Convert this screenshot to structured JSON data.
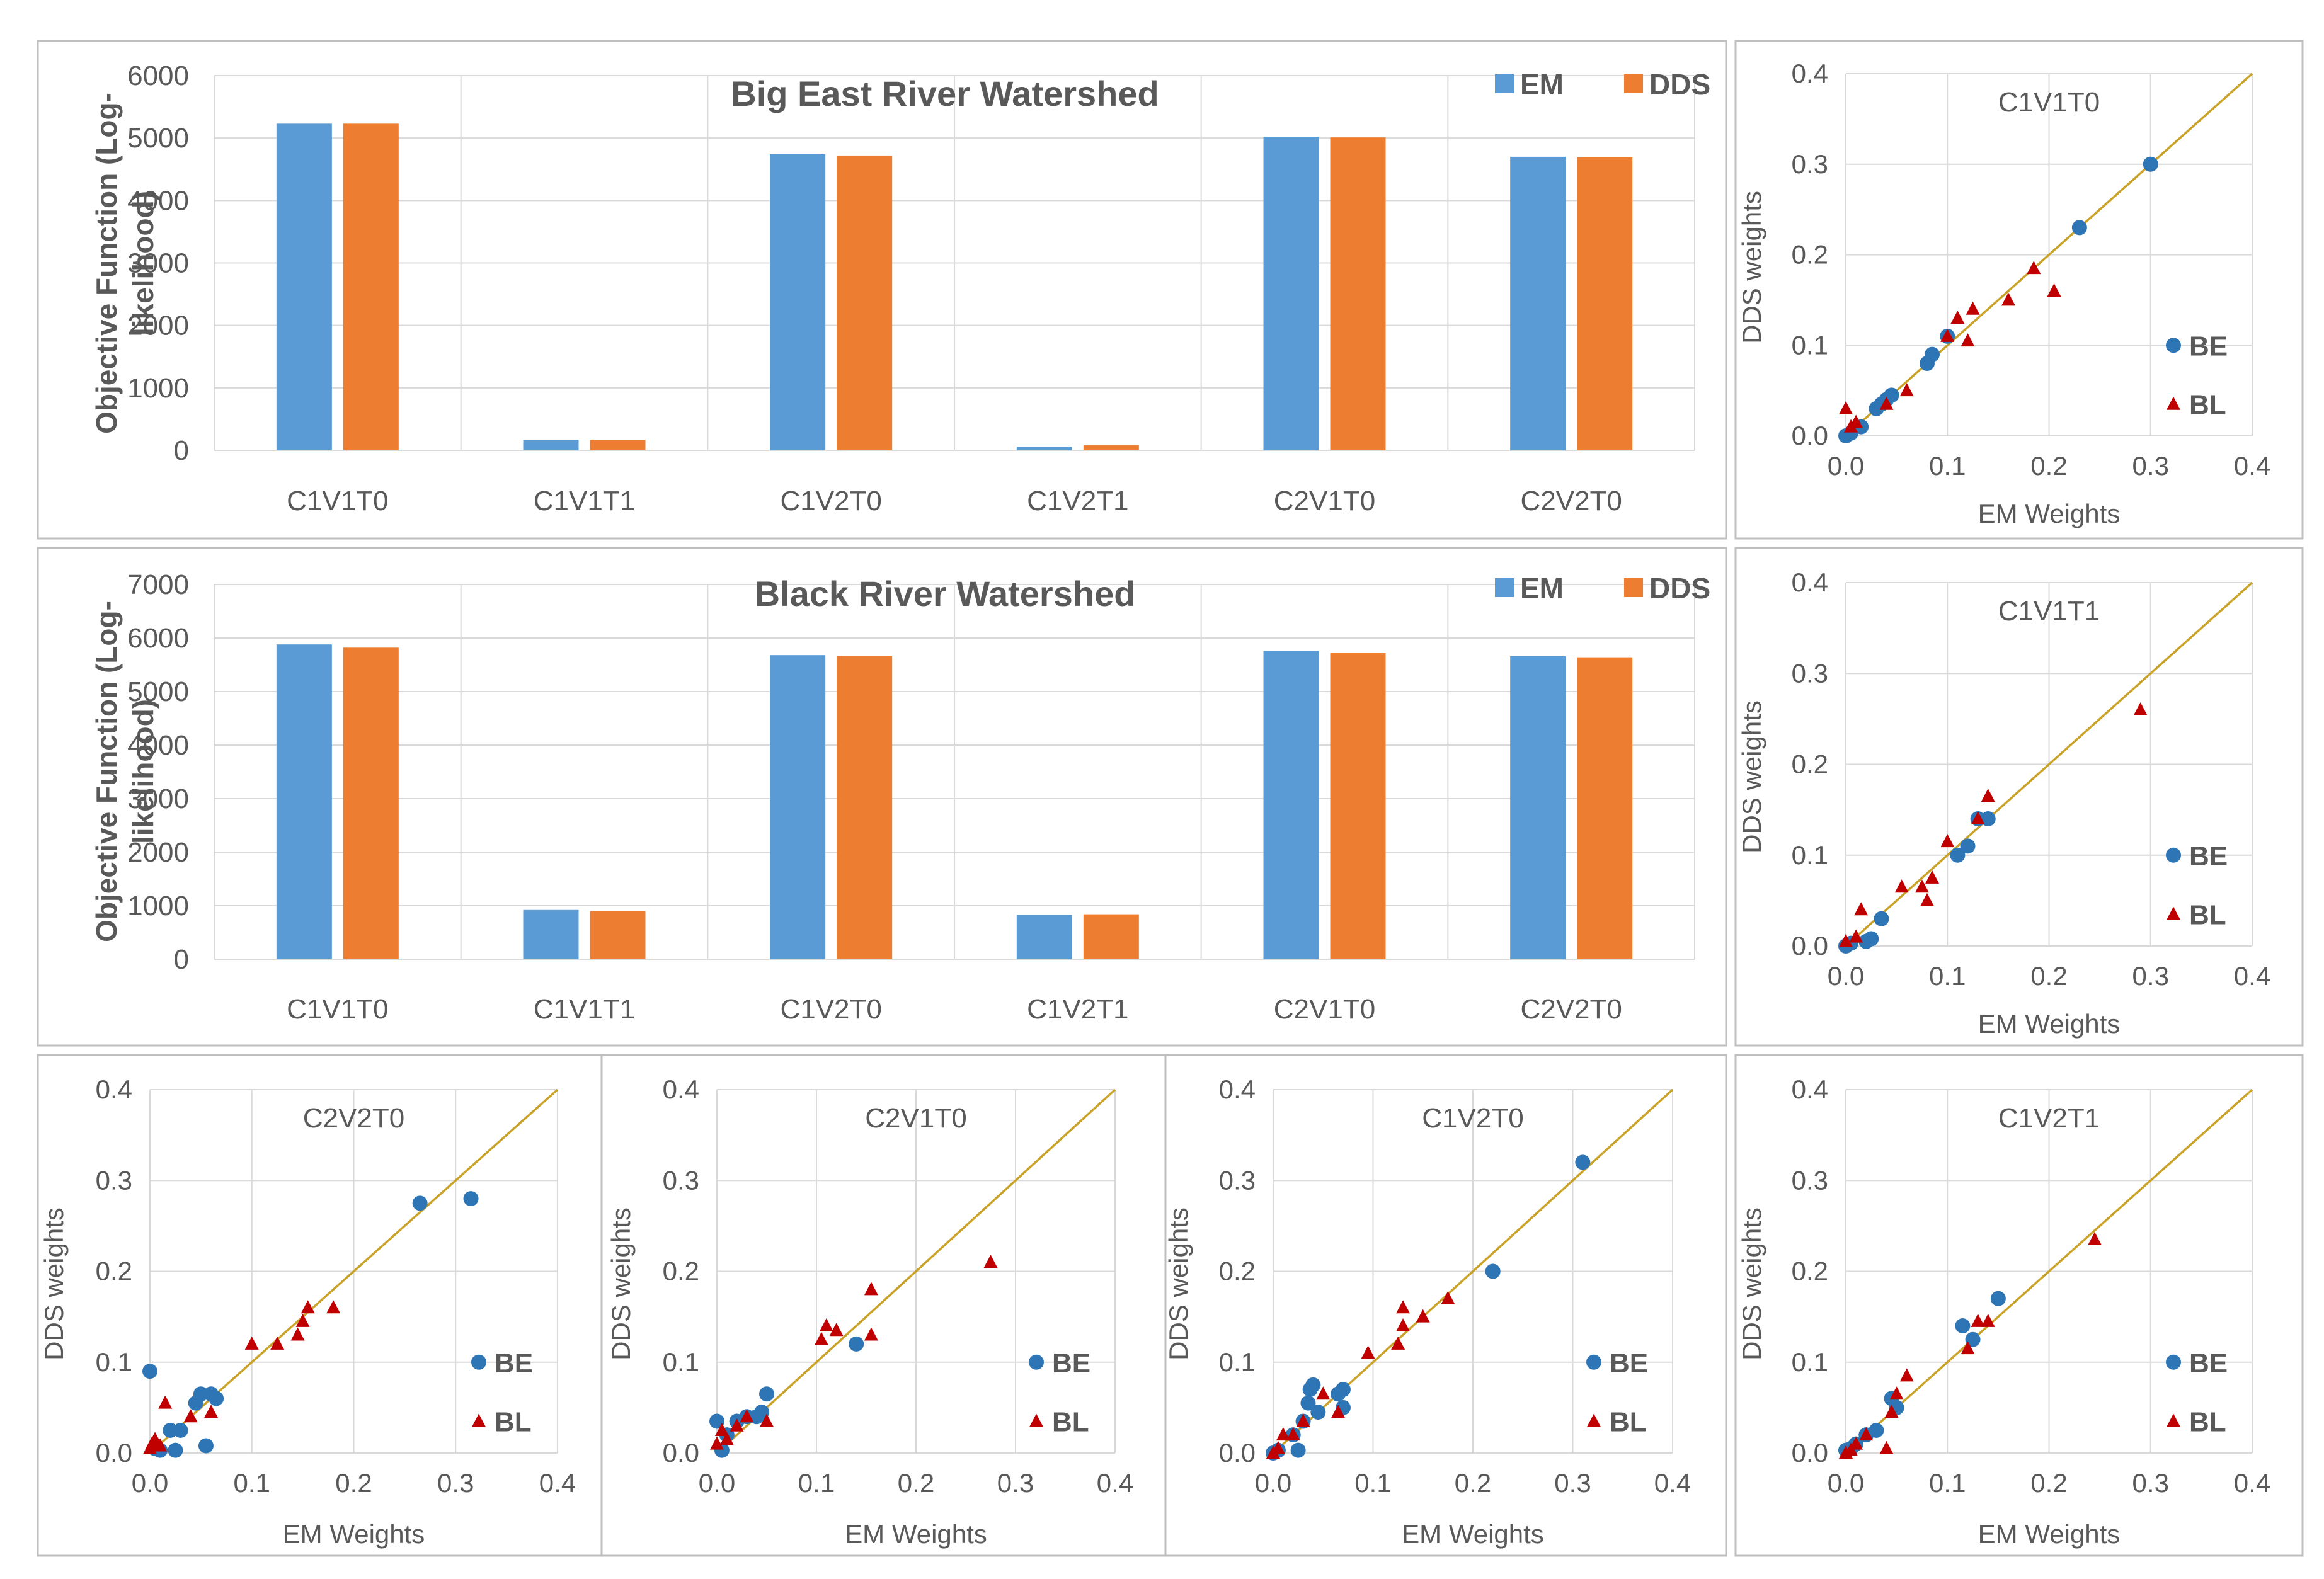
{
  "colors": {
    "em": "#5B9BD5",
    "dds": "#ED7D31",
    "be": "#2E75B6",
    "bl": "#C00000",
    "line": "#C9A227",
    "grid": "#D9D9D9",
    "frame": "#BFBFBF",
    "text": "#595959"
  },
  "chart_data": [
    {
      "id": "bar-big-east",
      "type": "bar",
      "title": "Big East River Watershed",
      "ylabel_lines": [
        "Objective Function (Log-",
        "likelihood)"
      ],
      "xlabel": "",
      "categories": [
        "C1V1T0",
        "C1V1T1",
        "C1V2T0",
        "C1V2T1",
        "C2V1T0",
        "C2V2T0"
      ],
      "series": [
        {
          "name": "EM",
          "values": [
            5230,
            170,
            4740,
            60,
            5020,
            4700
          ]
        },
        {
          "name": "DDS",
          "values": [
            5230,
            170,
            4720,
            80,
            5010,
            4690
          ]
        }
      ],
      "ylim": [
        0,
        6000
      ],
      "yticks": [
        "0",
        "1000",
        "2000",
        "3000",
        "4000",
        "5000",
        "6000"
      ],
      "legend": "top-right"
    },
    {
      "id": "bar-black",
      "type": "bar",
      "title": "Black River Watershed",
      "ylabel_lines": [
        "Objective Function (Log-",
        "likelihood)"
      ],
      "xlabel": "",
      "categories": [
        "C1V1T0",
        "C1V1T1",
        "C1V2T0",
        "C1V2T1",
        "C2V1T0",
        "C2V2T0"
      ],
      "series": [
        {
          "name": "EM",
          "values": [
            5880,
            920,
            5680,
            830,
            5760,
            5660
          ]
        },
        {
          "name": "DDS",
          "values": [
            5820,
            900,
            5670,
            840,
            5720,
            5640
          ]
        }
      ],
      "ylim": [
        0,
        7000
      ],
      "yticks": [
        "0",
        "1000",
        "2000",
        "3000",
        "4000",
        "5000",
        "6000",
        "7000"
      ],
      "legend": "top-right"
    },
    {
      "id": "sc-c1v1t0",
      "type": "scatter",
      "title": "C1V1T0",
      "xlabel": "EM Weights",
      "ylabel": "DDS weights",
      "xlim": [
        0,
        0.4
      ],
      "ylim": [
        0,
        0.4
      ],
      "xticks": [
        "0.0",
        "0.1",
        "0.2",
        "0.3",
        "0.4"
      ],
      "yticks": [
        "0.0",
        "0.1",
        "0.2",
        "0.3",
        "0.4"
      ],
      "legend": "right",
      "series": [
        {
          "name": "BE",
          "points": [
            [
              0,
              0
            ],
            [
              0.005,
              0.003
            ],
            [
              0.015,
              0.01
            ],
            [
              0.03,
              0.03
            ],
            [
              0.035,
              0.035
            ],
            [
              0.04,
              0.04
            ],
            [
              0.045,
              0.045
            ],
            [
              0.08,
              0.08
            ],
            [
              0.085,
              0.09
            ],
            [
              0.1,
              0.11
            ],
            [
              0.23,
              0.23
            ],
            [
              0.3,
              0.3
            ]
          ]
        },
        {
          "name": "BL",
          "points": [
            [
              0,
              0.03
            ],
            [
              0.005,
              0.01
            ],
            [
              0.01,
              0.015
            ],
            [
              0.04,
              0.035
            ],
            [
              0.06,
              0.05
            ],
            [
              0.1,
              0.11
            ],
            [
              0.11,
              0.13
            ],
            [
              0.12,
              0.105
            ],
            [
              0.125,
              0.14
            ],
            [
              0.16,
              0.15
            ],
            [
              0.185,
              0.185
            ],
            [
              0.205,
              0.16
            ]
          ]
        }
      ]
    },
    {
      "id": "sc-c1v1t1",
      "type": "scatter",
      "title": "C1V1T1",
      "xlabel": "EM Weights",
      "ylabel": "DDS weights",
      "xlim": [
        0,
        0.4
      ],
      "ylim": [
        0,
        0.4
      ],
      "xticks": [
        "0.0",
        "0.1",
        "0.2",
        "0.3",
        "0.4"
      ],
      "yticks": [
        "0.0",
        "0.1",
        "0.2",
        "0.3",
        "0.4"
      ],
      "legend": "right",
      "series": [
        {
          "name": "BE",
          "points": [
            [
              0,
              0
            ],
            [
              0.005,
              0.003
            ],
            [
              0.02,
              0.005
            ],
            [
              0.025,
              0.008
            ],
            [
              0.035,
              0.03
            ],
            [
              0.11,
              0.1
            ],
            [
              0.12,
              0.11
            ],
            [
              0.13,
              0.14
            ],
            [
              0.14,
              0.14
            ]
          ]
        },
        {
          "name": "BL",
          "points": [
            [
              0,
              0.005
            ],
            [
              0.01,
              0.01
            ],
            [
              0.015,
              0.04
            ],
            [
              0.055,
              0.065
            ],
            [
              0.075,
              0.065
            ],
            [
              0.08,
              0.05
            ],
            [
              0.085,
              0.075
            ],
            [
              0.1,
              0.115
            ],
            [
              0.13,
              0.14
            ],
            [
              0.14,
              0.165
            ],
            [
              0.29,
              0.26
            ]
          ]
        }
      ]
    },
    {
      "id": "sc-c2v2t0",
      "type": "scatter",
      "title": "C2V2T0",
      "xlabel": "EM Weights",
      "ylabel": "DDS weights",
      "xlim": [
        0,
        0.4
      ],
      "ylim": [
        0,
        0.4
      ],
      "xticks": [
        "0.0",
        "0.1",
        "0.2",
        "0.3",
        "0.4"
      ],
      "yticks": [
        "0.0",
        "0.1",
        "0.2",
        "0.3",
        "0.4"
      ],
      "legend": "right",
      "series": [
        {
          "name": "BE",
          "points": [
            [
              0,
              0.09
            ],
            [
              0.005,
              0.005
            ],
            [
              0.01,
              0.003
            ],
            [
              0.02,
              0.025
            ],
            [
              0.025,
              0.003
            ],
            [
              0.03,
              0.025
            ],
            [
              0.045,
              0.055
            ],
            [
              0.05,
              0.065
            ],
            [
              0.055,
              0.008
            ],
            [
              0.06,
              0.065
            ],
            [
              0.065,
              0.06
            ],
            [
              0.265,
              0.275
            ],
            [
              0.315,
              0.28
            ]
          ]
        },
        {
          "name": "BL",
          "points": [
            [
              0,
              0.005
            ],
            [
              0.002,
              0.01
            ],
            [
              0.005,
              0.015
            ],
            [
              0.01,
              0.008
            ],
            [
              0.015,
              0.055
            ],
            [
              0.04,
              0.04
            ],
            [
              0.06,
              0.045
            ],
            [
              0.1,
              0.12
            ],
            [
              0.125,
              0.12
            ],
            [
              0.145,
              0.13
            ],
            [
              0.15,
              0.145
            ],
            [
              0.155,
              0.16
            ],
            [
              0.18,
              0.16
            ]
          ]
        }
      ]
    },
    {
      "id": "sc-c2v1t0",
      "type": "scatter",
      "title": "C2V1T0",
      "xlabel": "EM Weights",
      "ylabel": "DDS weights",
      "xlim": [
        0,
        0.4
      ],
      "ylim": [
        0,
        0.4
      ],
      "xticks": [
        "0.0",
        "0.1",
        "0.2",
        "0.3",
        "0.4"
      ],
      "yticks": [
        "0.0",
        "0.1",
        "0.2",
        "0.3",
        "0.4"
      ],
      "legend": "right",
      "series": [
        {
          "name": "BE",
          "points": [
            [
              0,
              0.035
            ],
            [
              0.005,
              0.003
            ],
            [
              0.01,
              0.02
            ],
            [
              0.02,
              0.035
            ],
            [
              0.03,
              0.04
            ],
            [
              0.04,
              0.04
            ],
            [
              0.045,
              0.045
            ],
            [
              0.05,
              0.065
            ],
            [
              0.14,
              0.12
            ]
          ]
        },
        {
          "name": "BL",
          "points": [
            [
              0,
              0.01
            ],
            [
              0.005,
              0.025
            ],
            [
              0.01,
              0.015
            ],
            [
              0.02,
              0.03
            ],
            [
              0.03,
              0.04
            ],
            [
              0.05,
              0.035
            ],
            [
              0.105,
              0.125
            ],
            [
              0.11,
              0.14
            ],
            [
              0.12,
              0.135
            ],
            [
              0.155,
              0.18
            ],
            [
              0.155,
              0.13
            ],
            [
              0.275,
              0.21
            ]
          ]
        }
      ]
    },
    {
      "id": "sc-c1v2t0",
      "type": "scatter",
      "title": "C1V2T0",
      "xlabel": "EM Weights",
      "ylabel": "DDS weights",
      "xlim": [
        0,
        0.4
      ],
      "ylim": [
        0,
        0.4
      ],
      "xticks": [
        "0.0",
        "0.1",
        "0.2",
        "0.3",
        "0.4"
      ],
      "yticks": [
        "0.0",
        "0.1",
        "0.2",
        "0.3",
        "0.4"
      ],
      "legend": "right",
      "series": [
        {
          "name": "BE",
          "points": [
            [
              0,
              0
            ],
            [
              0.005,
              0.003
            ],
            [
              0.02,
              0.02
            ],
            [
              0.025,
              0.003
            ],
            [
              0.03,
              0.035
            ],
            [
              0.035,
              0.055
            ],
            [
              0.037,
              0.07
            ],
            [
              0.04,
              0.075
            ],
            [
              0.045,
              0.045
            ],
            [
              0.065,
              0.065
            ],
            [
              0.07,
              0.05
            ],
            [
              0.07,
              0.07
            ],
            [
              0.22,
              0.2
            ],
            [
              0.31,
              0.32
            ]
          ]
        },
        {
          "name": "BL",
          "points": [
            [
              0,
              0
            ],
            [
              0.005,
              0.005
            ],
            [
              0.01,
              0.02
            ],
            [
              0.02,
              0.02
            ],
            [
              0.03,
              0.035
            ],
            [
              0.05,
              0.065
            ],
            [
              0.065,
              0.045
            ],
            [
              0.095,
              0.11
            ],
            [
              0.125,
              0.12
            ],
            [
              0.13,
              0.14
            ],
            [
              0.13,
              0.16
            ],
            [
              0.15,
              0.15
            ],
            [
              0.175,
              0.17
            ]
          ]
        }
      ]
    },
    {
      "id": "sc-c1v2t1",
      "type": "scatter",
      "title": "C1V2T1",
      "xlabel": "EM Weights",
      "ylabel": "DDS weights",
      "xlim": [
        0,
        0.4
      ],
      "ylim": [
        0,
        0.4
      ],
      "xticks": [
        "0.0",
        "0.1",
        "0.2",
        "0.3",
        "0.4"
      ],
      "yticks": [
        "0.0",
        "0.1",
        "0.2",
        "0.3",
        "0.4"
      ],
      "legend": "right",
      "series": [
        {
          "name": "BE",
          "points": [
            [
              0,
              0.003
            ],
            [
              0.005,
              0.005
            ],
            [
              0.01,
              0.01
            ],
            [
              0.02,
              0.02
            ],
            [
              0.03,
              0.025
            ],
            [
              0.045,
              0.06
            ],
            [
              0.05,
              0.05
            ],
            [
              0.115,
              0.14
            ],
            [
              0.125,
              0.125
            ],
            [
              0.15,
              0.17
            ]
          ]
        },
        {
          "name": "BL",
          "points": [
            [
              0,
              0
            ],
            [
              0.005,
              0.003
            ],
            [
              0.01,
              0.01
            ],
            [
              0.02,
              0.02
            ],
            [
              0.04,
              0.005
            ],
            [
              0.045,
              0.045
            ],
            [
              0.05,
              0.065
            ],
            [
              0.06,
              0.085
            ],
            [
              0.12,
              0.115
            ],
            [
              0.13,
              0.145
            ],
            [
              0.14,
              0.145
            ],
            [
              0.245,
              0.235
            ]
          ]
        }
      ]
    }
  ]
}
